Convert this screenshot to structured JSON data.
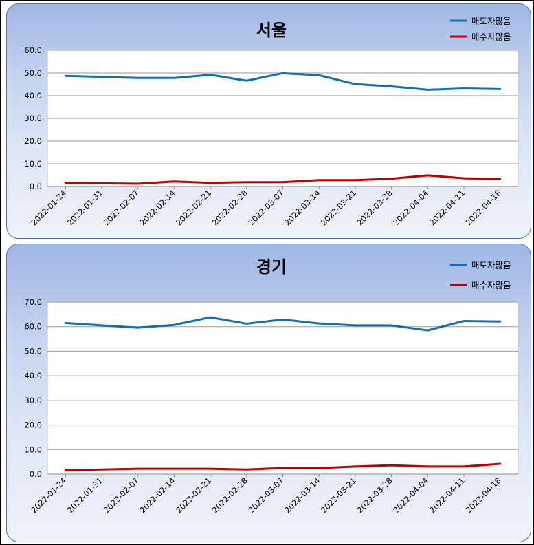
{
  "chart_data": [
    {
      "type": "line",
      "title": "서울",
      "xlabel": "",
      "ylabel": "",
      "ylim": [
        0,
        60
      ],
      "yticks": [
        "0.0",
        "10.0",
        "20.0",
        "30.0",
        "40.0",
        "50.0",
        "60.0"
      ],
      "categories": [
        "2022-01-24",
        "2022-01-31",
        "2022-02-07",
        "2022-02-14",
        "2022-02-21",
        "2022-02-28",
        "2022-03-07",
        "2022-03-14",
        "2022-03-21",
        "2022-03-28",
        "2022-04-04",
        "2022-04-11",
        "2022-04-18"
      ],
      "legend_position": "top-right",
      "grid": true,
      "series": [
        {
          "name": "매도자많음",
          "color": "#0f6fb8",
          "values": [
            48.7,
            48.3,
            47.8,
            47.8,
            49.2,
            46.6,
            49.9,
            49.0,
            45.1,
            44.1,
            42.6,
            43.2,
            42.9
          ]
        },
        {
          "name": "매수자많음",
          "color": "#c00000",
          "values": [
            1.6,
            1.4,
            1.2,
            2.2,
            1.6,
            1.9,
            1.9,
            2.8,
            2.8,
            3.4,
            4.9,
            3.6,
            3.3
          ]
        }
      ]
    },
    {
      "type": "line",
      "title": "경기",
      "xlabel": "",
      "ylabel": "",
      "ylim": [
        0,
        70
      ],
      "yticks": [
        "0.0",
        "10.0",
        "20.0",
        "30.0",
        "40.0",
        "50.0",
        "60.0",
        "70.0"
      ],
      "categories": [
        "2022-01-24",
        "2022-01-31",
        "2022-02-07",
        "2022-02-14",
        "2022-02-21",
        "2022-02-28",
        "2022-03-07",
        "2022-03-14",
        "2022-03-21",
        "2022-03-28",
        "2022-04-04",
        "2022-04-11",
        "2022-04-18"
      ],
      "legend_position": "top-right",
      "grid": true,
      "series": [
        {
          "name": "매도자많음",
          "color": "#0f6fb8",
          "values": [
            61.5,
            60.5,
            59.6,
            60.7,
            63.8,
            61.2,
            62.9,
            61.3,
            60.5,
            60.5,
            58.5,
            62.3,
            62.1
          ]
        },
        {
          "name": "매수자많음",
          "color": "#c00000",
          "values": [
            1.6,
            1.9,
            2.2,
            2.2,
            2.2,
            1.9,
            2.5,
            2.5,
            3.1,
            3.6,
            3.1,
            3.1,
            4.2
          ]
        }
      ]
    }
  ]
}
